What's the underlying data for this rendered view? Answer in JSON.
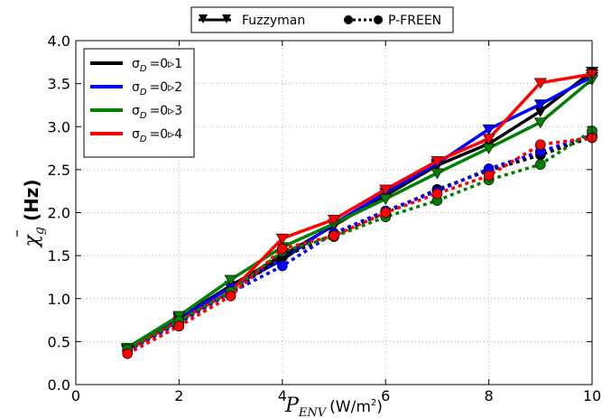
{
  "chart_data": {
    "type": "line",
    "xlabel_main": "P",
    "xlabel_sub": "ENV",
    "xlabel_unit": "(W/m",
    "xlabel_unit_sup": "2",
    "xlabel_unit_close": ")",
    "ylabel_main": "χ",
    "ylabel_sub": "g",
    "ylabel_unit": "(Hz)",
    "xlim": [
      0,
      10
    ],
    "ylim": [
      0.0,
      4.0
    ],
    "xticks": [
      "0",
      "2",
      "4",
      "6",
      "8",
      "10"
    ],
    "yticks": [
      "0.0",
      "0.5",
      "1.0",
      "1.5",
      "2.0",
      "2.5",
      "3.0",
      "3.5",
      "4.0"
    ],
    "grid": true,
    "legend_top": [
      {
        "label": "Fuzzyman",
        "linestyle": "solid",
        "marker": "triangle-down"
      },
      {
        "label": "P-FREEN",
        "linestyle": "dotted",
        "marker": "circle"
      }
    ],
    "legend_inner": [
      {
        "label": "σ",
        "sub": "D",
        "rest": "=0▹1",
        "color": "#000000"
      },
      {
        "label": "σ",
        "sub": "D",
        "rest": "=0▹2",
        "color": "#0000ff"
      },
      {
        "label": "σ",
        "sub": "D",
        "rest": "=0▹3",
        "color": "#008000"
      },
      {
        "label": "σ",
        "sub": "D",
        "rest": "=0▹4",
        "color": "#ff0000"
      }
    ],
    "legend_placement": "top-left",
    "x": [
      1,
      2,
      3,
      4,
      5,
      6,
      7,
      8,
      9,
      10
    ],
    "series": [
      {
        "method": "Fuzzyman",
        "sigma": "0.1",
        "color": "#000000",
        "style": "solid",
        "marker": "triangle-down",
        "values": [
          0.42,
          0.78,
          1.15,
          1.5,
          1.85,
          2.2,
          2.55,
          2.8,
          3.18,
          3.64
        ]
      },
      {
        "method": "Fuzzyman",
        "sigma": "0.2",
        "color": "#0000ff",
        "style": "solid",
        "marker": "triangle-down",
        "values": [
          0.41,
          0.77,
          1.13,
          1.45,
          1.87,
          2.23,
          2.57,
          2.97,
          3.26,
          3.58
        ]
      },
      {
        "method": "Fuzzyman",
        "sigma": "0.3",
        "color": "#008000",
        "style": "solid",
        "marker": "triangle-down",
        "values": [
          0.43,
          0.8,
          1.22,
          1.6,
          1.87,
          2.16,
          2.46,
          2.75,
          3.05,
          3.55
        ]
      },
      {
        "method": "Fuzzyman",
        "sigma": "0.4",
        "color": "#ff0000",
        "style": "solid",
        "marker": "triangle-down",
        "values": [
          0.4,
          0.74,
          1.08,
          1.7,
          1.92,
          2.27,
          2.6,
          2.86,
          3.51,
          3.61
        ]
      },
      {
        "method": "P-FREEN",
        "sigma": "0.1",
        "color": "#000000",
        "style": "dotted",
        "marker": "circle",
        "values": [
          0.4,
          0.73,
          1.08,
          1.48,
          1.75,
          2.0,
          2.27,
          2.49,
          2.67,
          2.88
        ]
      },
      {
        "method": "P-FREEN",
        "sigma": "0.2",
        "color": "#0000ff",
        "style": "dotted",
        "marker": "circle",
        "values": [
          0.39,
          0.72,
          1.07,
          1.38,
          1.76,
          2.02,
          2.25,
          2.51,
          2.71,
          2.9
        ]
      },
      {
        "method": "P-FREEN",
        "sigma": "0.3",
        "color": "#008000",
        "style": "dotted",
        "marker": "circle",
        "values": [
          0.41,
          0.74,
          1.08,
          1.55,
          1.72,
          1.95,
          2.14,
          2.38,
          2.56,
          2.95
        ]
      },
      {
        "method": "P-FREEN",
        "sigma": "0.4",
        "color": "#ff0000",
        "style": "dotted",
        "marker": "circle",
        "values": [
          0.36,
          0.68,
          1.03,
          1.58,
          1.73,
          2.0,
          2.22,
          2.43,
          2.79,
          2.87
        ]
      }
    ]
  }
}
